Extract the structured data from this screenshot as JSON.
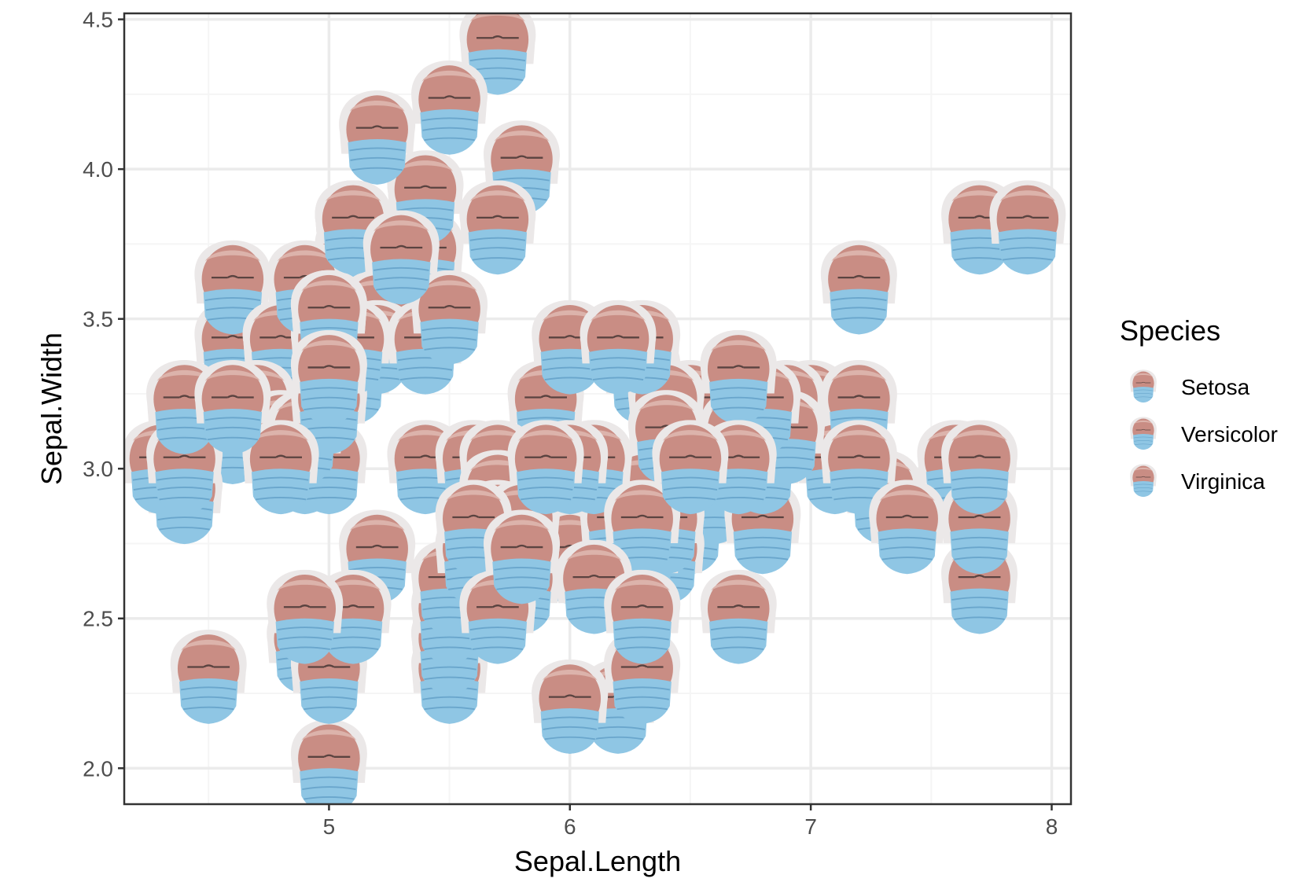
{
  "chart_data": {
    "type": "scatter",
    "title": "",
    "xlabel": "Sepal.Length",
    "ylabel": "Sepal.Width",
    "xlim": [
      4.15,
      8.08
    ],
    "ylim": [
      1.88,
      4.52
    ],
    "x_ticks": [
      "5",
      "6",
      "7",
      "8"
    ],
    "x_tick_values": [
      5,
      6,
      7,
      8
    ],
    "y_ticks": [
      "2.0",
      "2.5",
      "3.0",
      "3.5",
      "4.0",
      "4.5"
    ],
    "y_tick_values": [
      2.0,
      2.5,
      3.0,
      3.5,
      4.0,
      4.5
    ],
    "grid": true,
    "theme": "bw",
    "marker": "masked-face-icon",
    "legend": {
      "title": "Species",
      "position": "right",
      "entries": [
        "Setosa",
        "Versicolor",
        "Virginica"
      ]
    },
    "colors": {
      "panel_border": "#333333",
      "grid_major": "#ebebeb",
      "grid_minor": "#f5f5f5",
      "face_skin": "#c98d84",
      "face_hair": "#e9e6e6",
      "mask": "#8fc6e4"
    },
    "series": [
      {
        "name": "Setosa",
        "points": [
          [
            5.1,
            3.5
          ],
          [
            4.9,
            3.0
          ],
          [
            4.7,
            3.2
          ],
          [
            4.6,
            3.1
          ],
          [
            5.0,
            3.6
          ],
          [
            5.4,
            3.9
          ],
          [
            4.6,
            3.4
          ],
          [
            5.0,
            3.4
          ],
          [
            4.4,
            2.9
          ],
          [
            4.9,
            3.1
          ],
          [
            5.4,
            3.7
          ],
          [
            4.8,
            3.4
          ],
          [
            4.8,
            3.0
          ],
          [
            4.3,
            3.0
          ],
          [
            5.8,
            4.0
          ],
          [
            5.7,
            4.4
          ],
          [
            5.4,
            3.9
          ],
          [
            5.1,
            3.5
          ],
          [
            5.7,
            3.8
          ],
          [
            5.1,
            3.8
          ],
          [
            5.4,
            3.4
          ],
          [
            5.1,
            3.7
          ],
          [
            4.6,
            3.6
          ],
          [
            5.1,
            3.3
          ],
          [
            4.8,
            3.4
          ],
          [
            5.0,
            3.0
          ],
          [
            5.0,
            3.4
          ],
          [
            5.2,
            3.5
          ],
          [
            5.2,
            3.4
          ],
          [
            4.7,
            3.2
          ],
          [
            4.8,
            3.1
          ],
          [
            5.4,
            3.4
          ],
          [
            5.2,
            4.1
          ],
          [
            5.5,
            4.2
          ],
          [
            4.9,
            3.1
          ],
          [
            5.0,
            3.2
          ],
          [
            5.5,
            3.5
          ],
          [
            4.9,
            3.6
          ],
          [
            4.4,
            3.0
          ],
          [
            5.1,
            3.4
          ],
          [
            5.0,
            3.5
          ],
          [
            4.5,
            2.3
          ],
          [
            4.4,
            3.2
          ],
          [
            5.0,
            3.5
          ],
          [
            5.1,
            3.8
          ],
          [
            4.8,
            3.0
          ],
          [
            5.1,
            3.8
          ],
          [
            4.6,
            3.2
          ],
          [
            5.3,
            3.7
          ],
          [
            5.0,
            3.3
          ]
        ]
      },
      {
        "name": "Versicolor",
        "points": [
          [
            7.0,
            3.2
          ],
          [
            6.4,
            3.2
          ],
          [
            6.9,
            3.1
          ],
          [
            5.5,
            2.3
          ],
          [
            6.5,
            2.8
          ],
          [
            5.7,
            2.8
          ],
          [
            6.3,
            3.3
          ],
          [
            4.9,
            2.4
          ],
          [
            6.6,
            2.9
          ],
          [
            5.2,
            2.7
          ],
          [
            5.0,
            2.0
          ],
          [
            5.9,
            3.0
          ],
          [
            6.0,
            2.2
          ],
          [
            6.1,
            2.9
          ],
          [
            5.6,
            2.9
          ],
          [
            6.7,
            3.1
          ],
          [
            5.6,
            3.0
          ],
          [
            5.8,
            2.7
          ],
          [
            6.2,
            2.2
          ],
          [
            5.6,
            2.5
          ],
          [
            5.9,
            3.2
          ],
          [
            6.1,
            2.8
          ],
          [
            6.3,
            2.5
          ],
          [
            6.1,
            2.8
          ],
          [
            6.4,
            2.9
          ],
          [
            6.6,
            3.0
          ],
          [
            6.8,
            2.8
          ],
          [
            6.7,
            3.0
          ],
          [
            6.0,
            2.9
          ],
          [
            5.7,
            2.6
          ],
          [
            5.5,
            2.4
          ],
          [
            5.5,
            2.4
          ],
          [
            5.8,
            2.7
          ],
          [
            6.0,
            2.7
          ],
          [
            5.4,
            3.0
          ],
          [
            6.0,
            3.4
          ],
          [
            6.7,
            3.1
          ],
          [
            6.3,
            2.3
          ],
          [
            5.6,
            3.0
          ],
          [
            5.5,
            2.5
          ],
          [
            5.5,
            2.6
          ],
          [
            6.1,
            3.0
          ],
          [
            5.8,
            2.6
          ],
          [
            5.0,
            2.3
          ],
          [
            5.6,
            2.7
          ],
          [
            5.7,
            3.0
          ],
          [
            5.7,
            2.9
          ],
          [
            6.2,
            2.9
          ],
          [
            5.1,
            2.5
          ],
          [
            5.7,
            2.8
          ]
        ]
      },
      {
        "name": "Virginica",
        "points": [
          [
            6.3,
            3.3
          ],
          [
            5.8,
            2.7
          ],
          [
            7.1,
            3.0
          ],
          [
            6.3,
            2.9
          ],
          [
            6.5,
            3.0
          ],
          [
            7.6,
            3.0
          ],
          [
            4.9,
            2.5
          ],
          [
            7.3,
            2.9
          ],
          [
            6.7,
            2.5
          ],
          [
            7.2,
            3.6
          ],
          [
            6.5,
            3.2
          ],
          [
            6.4,
            2.7
          ],
          [
            6.8,
            3.0
          ],
          [
            5.7,
            2.5
          ],
          [
            5.8,
            2.8
          ],
          [
            6.4,
            3.2
          ],
          [
            6.5,
            3.0
          ],
          [
            7.7,
            3.8
          ],
          [
            7.7,
            2.6
          ],
          [
            6.0,
            2.2
          ],
          [
            6.9,
            3.2
          ],
          [
            5.6,
            2.8
          ],
          [
            7.7,
            2.8
          ],
          [
            6.3,
            2.7
          ],
          [
            6.7,
            3.3
          ],
          [
            7.2,
            3.2
          ],
          [
            6.2,
            2.8
          ],
          [
            6.1,
            3.0
          ],
          [
            6.4,
            2.8
          ],
          [
            7.2,
            3.0
          ],
          [
            7.4,
            2.8
          ],
          [
            7.9,
            3.8
          ],
          [
            6.4,
            2.8
          ],
          [
            6.3,
            2.8
          ],
          [
            6.1,
            2.6
          ],
          [
            7.7,
            3.0
          ],
          [
            6.3,
            3.4
          ],
          [
            6.4,
            3.1
          ],
          [
            6.0,
            3.0
          ],
          [
            6.9,
            3.1
          ],
          [
            6.7,
            3.1
          ],
          [
            6.9,
            3.1
          ],
          [
            5.8,
            2.7
          ],
          [
            6.8,
            3.2
          ],
          [
            6.7,
            3.3
          ],
          [
            6.7,
            3.0
          ],
          [
            6.3,
            2.5
          ],
          [
            6.5,
            3.0
          ],
          [
            6.2,
            3.4
          ],
          [
            5.9,
            3.0
          ]
        ]
      }
    ]
  }
}
